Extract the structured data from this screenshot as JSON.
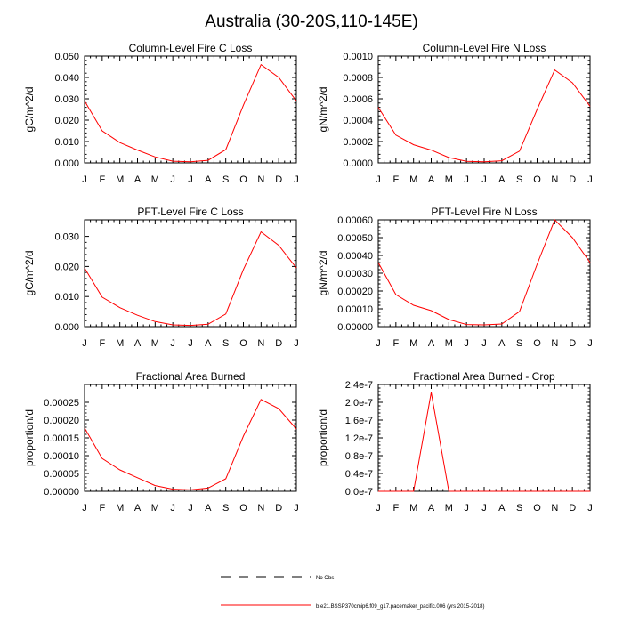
{
  "figure_title": "Australia (30-20S,110-145E)",
  "colors": {
    "series": "#ff0000",
    "axis": "#000000"
  },
  "legend": {
    "obs_label": "No Obs",
    "model_label": "b.e21.BSSP370cmip6.f09_g17.pacemaker_pacific.006 (yrs 2015-2018)"
  },
  "chart_data": [
    {
      "type": "line",
      "title": "Column-Level Fire C Loss",
      "ylabel": "gC/m^2/d",
      "x": [
        "J",
        "F",
        "M",
        "A",
        "M",
        "J",
        "J",
        "A",
        "S",
        "O",
        "N",
        "D",
        "J"
      ],
      "ylim": [
        0,
        0.05
      ],
      "yticks": [
        "0.000",
        "0.010",
        "0.020",
        "0.030",
        "0.040",
        "0.050"
      ],
      "series": [
        {
          "values": [
            0.029,
            0.015,
            0.0095,
            0.006,
            0.0028,
            0.0008,
            0.0005,
            0.0012,
            0.0062,
            0.027,
            0.046,
            0.04,
            0.029
          ]
        }
      ]
    },
    {
      "type": "line",
      "title": "Column-Level Fire N Loss",
      "ylabel": "gN/m^2/d",
      "x": [
        "J",
        "F",
        "M",
        "A",
        "M",
        "J",
        "J",
        "A",
        "S",
        "O",
        "N",
        "D",
        "J"
      ],
      "ylim": [
        0,
        0.001
      ],
      "yticks": [
        "0.0000",
        "0.0002",
        "0.0004",
        "0.0006",
        "0.0008",
        "0.0010"
      ],
      "series": [
        {
          "values": [
            0.00052,
            0.00026,
            0.00017,
            0.00012,
            5e-05,
            1.5e-05,
            1e-05,
            2e-05,
            0.00011,
            0.0005,
            0.00087,
            0.00075,
            0.00053
          ]
        }
      ]
    },
    {
      "type": "line",
      "title": "PFT-Level Fire C Loss",
      "ylabel": "gC/m^2/d",
      "x": [
        "J",
        "F",
        "M",
        "A",
        "M",
        "J",
        "J",
        "A",
        "S",
        "O",
        "N",
        "D",
        "J"
      ],
      "ylim": [
        0,
        0.0355
      ],
      "yticks": [
        "0.000",
        "0.010",
        "0.020",
        "0.030"
      ],
      "yticks_values": [
        0,
        0.01,
        0.02,
        0.03
      ],
      "series": [
        {
          "values": [
            0.0195,
            0.0098,
            0.0063,
            0.0038,
            0.0017,
            0.0006,
            0.0004,
            0.0008,
            0.0042,
            0.019,
            0.0315,
            0.027,
            0.0195
          ]
        }
      ]
    },
    {
      "type": "line",
      "title": "PFT-Level Fire N Loss",
      "ylabel": "gN/m^2/d",
      "x": [
        "J",
        "F",
        "M",
        "A",
        "M",
        "J",
        "J",
        "A",
        "S",
        "O",
        "N",
        "D",
        "J"
      ],
      "ylim": [
        0,
        0.0006
      ],
      "yticks": [
        "0.00000",
        "0.00010",
        "0.00020",
        "0.00030",
        "0.00040",
        "0.00050",
        "0.00060"
      ],
      "series": [
        {
          "values": [
            0.00036,
            0.00018,
            0.00012,
            9e-05,
            4e-05,
            1.2e-05,
            1e-05,
            1.5e-05,
            8.5e-05,
            0.00035,
            0.0006,
            0.0005,
            0.00036
          ]
        }
      ]
    },
    {
      "type": "line",
      "title": "Fractional Area Burned",
      "ylabel": "proportion/d",
      "x": [
        "J",
        "F",
        "M",
        "A",
        "M",
        "J",
        "J",
        "A",
        "S",
        "O",
        "N",
        "D",
        "J"
      ],
      "ylim": [
        0,
        0.0003
      ],
      "yticks": [
        "0.00000",
        "0.00005",
        "0.00010",
        "0.00015",
        "0.00020",
        "0.00025"
      ],
      "yticks_values": [
        0,
        5e-05,
        0.0001,
        0.00015,
        0.0002,
        0.00025
      ],
      "series": [
        {
          "values": [
            0.000178,
            9.2e-05,
            6e-05,
            3.8e-05,
            1.6e-05,
            6e-06,
            4e-06,
            9e-06,
            3.5e-05,
            0.000155,
            0.000258,
            0.000232,
            0.000175
          ]
        }
      ]
    },
    {
      "type": "line",
      "title": "Fractional Area Burned - Crop",
      "ylabel": "proportion/d",
      "x": [
        "J",
        "F",
        "M",
        "A",
        "M",
        "J",
        "J",
        "A",
        "S",
        "O",
        "N",
        "D",
        "J"
      ],
      "ylim": [
        0,
        2.4e-07
      ],
      "yticks": [
        "0.0e-7",
        "0.4e-7",
        "0.8e-7",
        "1.2e-7",
        "1.6e-7",
        "2.0e-7",
        "2.4e-7"
      ],
      "series": [
        {
          "values": [
            0,
            0,
            0,
            2.22e-07,
            0,
            0,
            0,
            0,
            0,
            0,
            0,
            0,
            0
          ]
        }
      ]
    }
  ]
}
